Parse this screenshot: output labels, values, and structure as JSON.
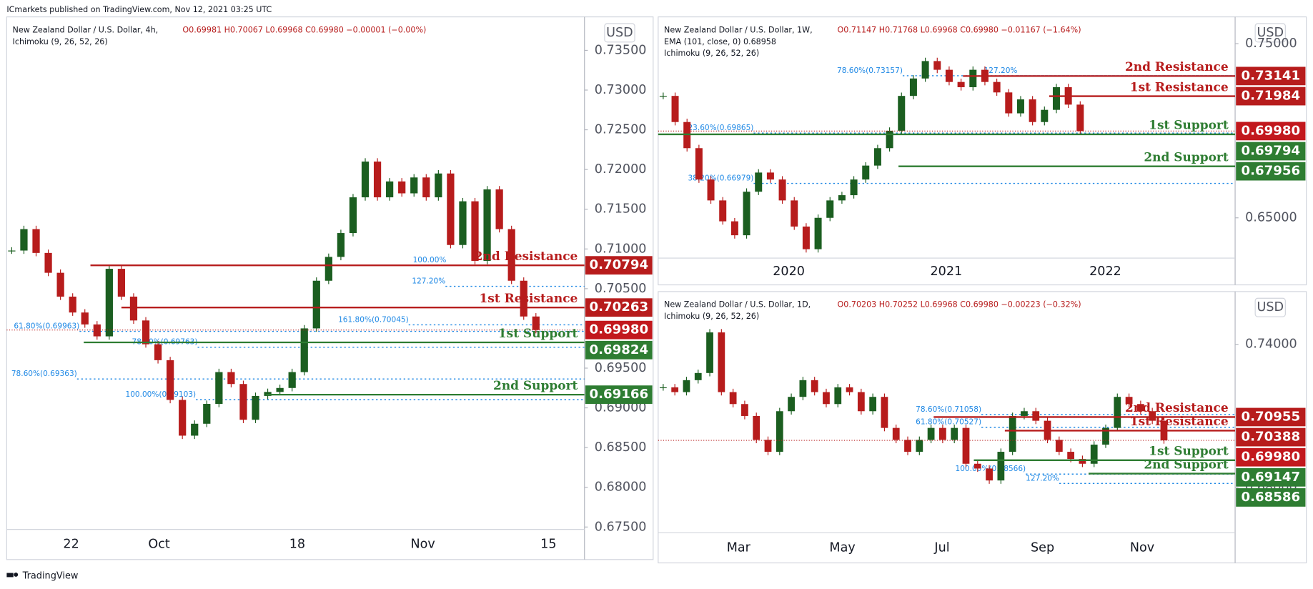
{
  "header": {
    "publisher": "ICmarkets published on TradingView.com, Nov 12, 2021 03:25 UTC"
  },
  "footer": {
    "brand": "TradingView"
  },
  "up_color": "#1b5e20",
  "down_color": "#b71c1c",
  "resistance_color": "#b71c1c",
  "support_color": "#2e7d32",
  "fib_color": "#1e88e5",
  "panels": [
    {
      "symbol": "New Zealand Dollar / U.S. Dollar, 4h,",
      "ohlc": "O0.69981 H0.70067 L0.69968 C0.69980 −0.00001 (−0.00%)",
      "indicators": [
        "Ichimoku (9, 26, 52, 26)"
      ],
      "currency": "USD",
      "ylim": [
        0.6747,
        0.739
      ],
      "yticks": [
        {
          "value": 0.735,
          "label": "0.73500"
        },
        {
          "value": 0.73,
          "label": "0.73000"
        },
        {
          "value": 0.725,
          "label": "0.72500"
        },
        {
          "value": 0.72,
          "label": "0.72000"
        },
        {
          "value": 0.715,
          "label": "0.71500"
        },
        {
          "value": 0.71,
          "label": "0.71000"
        },
        {
          "value": 0.705,
          "label": "0.70500"
        },
        {
          "value": 0.695,
          "label": "0.69500"
        },
        {
          "value": 0.69,
          "label": "0.69000"
        },
        {
          "value": 0.685,
          "label": "0.68500"
        },
        {
          "value": 0.68,
          "label": "0.68000"
        },
        {
          "value": 0.675,
          "label": "0.67500"
        }
      ],
      "xlabels": [
        "22",
        "Oct",
        "18",
        "Nov",
        "15"
      ],
      "closes": [
        0.7098,
        0.7125,
        0.7095,
        0.707,
        0.704,
        0.702,
        0.7005,
        0.699,
        0.7075,
        0.704,
        0.701,
        0.698,
        0.696,
        0.691,
        0.6865,
        0.688,
        0.6905,
        0.6945,
        0.693,
        0.6885,
        0.6915,
        0.692,
        0.6925,
        0.6945,
        0.7,
        0.706,
        0.709,
        0.712,
        0.7165,
        0.721,
        0.7165,
        0.7185,
        0.717,
        0.719,
        0.7165,
        0.7195,
        0.7105,
        0.716,
        0.7085,
        0.7175,
        0.7125,
        0.706,
        0.7015,
        0.6998
      ],
      "levels": [
        {
          "name": "2nd Resistance",
          "kind": "resistance",
          "price": {
            "value": 0.70794,
            "label": "0.70794"
          }
        },
        {
          "name": "1st Resistance",
          "kind": "resistance",
          "price": {
            "value": 0.70263,
            "label": "0.70263"
          }
        },
        {
          "name": "1st Support",
          "kind": "support",
          "price": {
            "value": 0.69824,
            "label": "0.69824"
          }
        },
        {
          "name": "2nd Support",
          "kind": "support",
          "price": {
            "value": 0.69166,
            "label": "0.69166"
          }
        }
      ],
      "current": {
        "value": 0.6998,
        "label": "0.69980"
      },
      "fibs": [
        {
          "value": 0.70794,
          "label": "100.00%"
        },
        {
          "value": 0.7053,
          "label": "127.20%"
        },
        {
          "value": 0.70045,
          "label": "161.80%(0.70045)"
        },
        {
          "value": 0.69963,
          "label": "61.80%(0.69963)"
        },
        {
          "value": 0.69763,
          "label": "78.60%(0.69763)"
        },
        {
          "value": 0.69363,
          "label": "78.60%(0.69363)"
        },
        {
          "value": 0.69103,
          "label": "100.00%(0.69103)"
        }
      ]
    },
    {
      "symbol": "New Zealand Dollar / U.S. Dollar, 1W,",
      "ohlc": "O0.71147 H0.71768 L0.69968 C0.69980 −0.01167 (−1.64%)",
      "indicators": [
        "EMA (101, close, 0) 0.68958",
        "Ichimoku (9, 26, 52, 26)"
      ],
      "currency": "USD",
      "ylim": [
        0.6269,
        0.7644
      ],
      "yticks": [
        {
          "value": 0.75,
          "label": "0.75000"
        },
        {
          "value": 0.65,
          "label": "0.65000"
        }
      ],
      "xlabels": [
        "2020",
        "2021",
        "2022"
      ],
      "closes": [
        0.72,
        0.705,
        0.69,
        0.672,
        0.66,
        0.648,
        0.64,
        0.665,
        0.676,
        0.672,
        0.66,
        0.645,
        0.632,
        0.65,
        0.66,
        0.663,
        0.672,
        0.68,
        0.69,
        0.7,
        0.72,
        0.73,
        0.74,
        0.735,
        0.728,
        0.725,
        0.735,
        0.728,
        0.722,
        0.71,
        0.718,
        0.705,
        0.712,
        0.725,
        0.715,
        0.6998
      ],
      "levels": [
        {
          "name": "2nd Resistance",
          "kind": "resistance",
          "price": {
            "value": 0.73141,
            "label": "0.73141"
          }
        },
        {
          "name": "1st Resistance",
          "kind": "resistance",
          "price": {
            "value": 0.71984,
            "label": "0.71984"
          }
        },
        {
          "name": "1st Support",
          "kind": "support",
          "price": {
            "value": 0.69794,
            "label": "0.69794"
          }
        },
        {
          "name": "2nd Support",
          "kind": "support",
          "price": {
            "value": 0.67956,
            "label": "0.67956"
          }
        }
      ],
      "current": {
        "value": 0.6998,
        "label": "0.69980"
      },
      "fibs": [
        {
          "value": 0.73157,
          "label": "78.60%(0.73157)"
        },
        {
          "value": 0.7316,
          "label": "127.20%"
        },
        {
          "value": 0.69865,
          "label": "23.60%(0.69865)"
        },
        {
          "value": 0.66979,
          "label": "38.20%(0.66979)"
        }
      ]
    },
    {
      "symbol": "New Zealand Dollar / U.S. Dollar, 1D,",
      "ohlc": "O0.70203 H0.70252 L0.69968 C0.69980 −0.00223 (−0.32%)",
      "indicators": [
        "Ichimoku (9, 26, 52, 26)"
      ],
      "currency": "USD",
      "ylim": [
        0.6611,
        0.7614
      ],
      "yticks": [
        {
          "value": 0.74,
          "label": "0.74000"
        },
        {
          "value": 0.68,
          "label": "0.68000"
        }
      ],
      "xlabels": [
        "Mar",
        "May",
        "Jul",
        "Sep",
        "Nov"
      ],
      "closes": [
        0.722,
        0.72,
        0.725,
        0.728,
        0.745,
        0.72,
        0.715,
        0.71,
        0.7,
        0.695,
        0.712,
        0.718,
        0.725,
        0.72,
        0.715,
        0.722,
        0.72,
        0.712,
        0.718,
        0.705,
        0.7,
        0.695,
        0.7,
        0.705,
        0.7,
        0.705,
        0.69,
        0.688,
        0.683,
        0.695,
        0.71,
        0.712,
        0.708,
        0.7,
        0.695,
        0.692,
        0.69,
        0.698,
        0.705,
        0.718,
        0.715,
        0.712,
        0.708,
        0.6998
      ],
      "levels": [
        {
          "name": "2nd Resistance",
          "kind": "resistance",
          "price": {
            "value": 0.70955,
            "label": "0.70955"
          }
        },
        {
          "name": "1st Resistance",
          "kind": "resistance",
          "price": {
            "value": 0.70388,
            "label": "0.70388"
          }
        },
        {
          "name": "1st Support",
          "kind": "support",
          "price": {
            "value": 0.69147,
            "label": "0.69147"
          }
        },
        {
          "name": "2nd Support",
          "kind": "support",
          "price": {
            "value": 0.68586,
            "label": "0.68586"
          }
        }
      ],
      "current": {
        "value": 0.6998,
        "label": "0.69980"
      },
      "fibs": [
        {
          "value": 0.71058,
          "label": "78.60%(0.71058)"
        },
        {
          "value": 0.70527,
          "label": "61.80%(0.70527)"
        },
        {
          "value": 0.68566,
          "label": "100.00%(0.68566)"
        },
        {
          "value": 0.68175,
          "label": "127.20%"
        }
      ]
    }
  ]
}
